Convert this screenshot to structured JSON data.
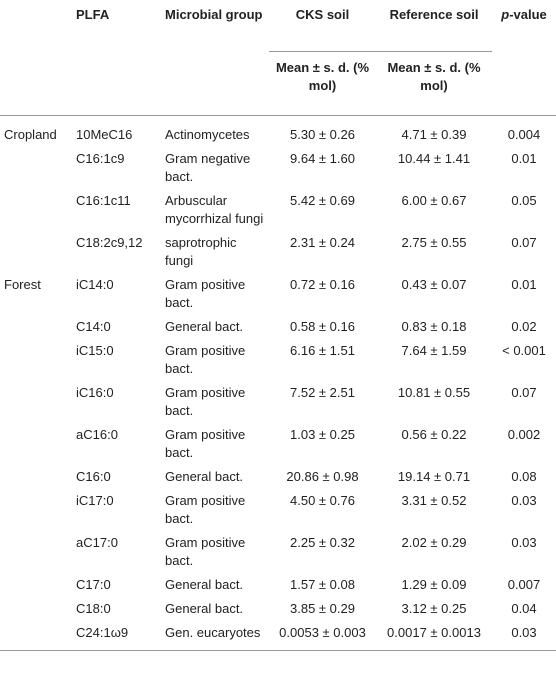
{
  "headers": {
    "plfa": "PLFA",
    "group": "Microbial group",
    "cks": "CKS soil",
    "ref": "Reference soil",
    "pval_p": "p",
    "pval_rest": "-value",
    "mean_cks": "Mean ± s. d. (% mol)",
    "mean_ref": "Mean ± s. d. (% mol)"
  },
  "rows": [
    {
      "site": "Cropland",
      "plfa": "10MeC16",
      "group": "Actinomycetes",
      "cks": "5.30 ± 0.26",
      "ref": "4.71 ± 0.39",
      "p": "0.004"
    },
    {
      "site": "",
      "plfa": "C16:1c9",
      "group": "Gram negative bact.",
      "cks": "9.64 ± 1.60",
      "ref": "10.44 ± 1.41",
      "p": "0.01"
    },
    {
      "site": "",
      "plfa": "C16:1c11",
      "group": "Arbuscular mycorrhizal fungi",
      "cks": "5.42 ± 0.69",
      "ref": "6.00 ± 0.67",
      "p": "0.05"
    },
    {
      "site": "",
      "plfa": "C18:2c9,12",
      "group": "saprotrophic fungi",
      "cks": "2.31 ± 0.24",
      "ref": "2.75 ± 0.55",
      "p": "0.07"
    },
    {
      "site": "Forest",
      "plfa": "iC14:0",
      "group": "Gram positive bact.",
      "cks": "0.72 ± 0.16",
      "ref": "0.43 ± 0.07",
      "p": "0.01"
    },
    {
      "site": "",
      "plfa": "C14:0",
      "group": "General bact.",
      "cks": "0.58 ± 0.16",
      "ref": "0.83 ± 0.18",
      "p": "0.02"
    },
    {
      "site": "",
      "plfa": "iC15:0",
      "group": "Gram positive bact.",
      "cks": "6.16 ± 1.51",
      "ref": "7.64 ± 1.59",
      "p": "< 0.001"
    },
    {
      "site": "",
      "plfa": "iC16:0",
      "group": "Gram positive bact.",
      "cks": "7.52 ± 2.51",
      "ref": "10.81 ± 0.55",
      "p": "0.07"
    },
    {
      "site": "",
      "plfa": "aC16:0",
      "group": "Gram positive bact.",
      "cks": "1.03 ± 0.25",
      "ref": "0.56 ± 0.22",
      "p": "0.002"
    },
    {
      "site": "",
      "plfa": "C16:0",
      "group": "General bact.",
      "cks": "20.86 ± 0.98",
      "ref": "19.14 ± 0.71",
      "p": "0.08"
    },
    {
      "site": "",
      "plfa": "iC17:0",
      "group": "Gram positive bact.",
      "cks": "4.50 ± 0.76",
      "ref": "3.31 ± 0.52",
      "p": "0.03"
    },
    {
      "site": "",
      "plfa": "aC17:0",
      "group": "Gram positive bact.",
      "cks": "2.25 ± 0.32",
      "ref": "2.02 ± 0.29",
      "p": "0.03"
    },
    {
      "site": "",
      "plfa": "C17:0",
      "group": "General bact.",
      "cks": "1.57 ± 0.08",
      "ref": "1.29 ± 0.09",
      "p": "0.007"
    },
    {
      "site": "",
      "plfa": "C18:0",
      "group": "General bact.",
      "cks": "3.85 ± 0.29",
      "ref": "3.12 ± 0.25",
      "p": "0.04"
    },
    {
      "site": "",
      "plfa": "C24:1ω9",
      "group": "Gen. eucaryotes",
      "cks": "0.0053 ± 0.003",
      "ref": "0.0017 ± 0.0013",
      "p": "0.03"
    }
  ]
}
